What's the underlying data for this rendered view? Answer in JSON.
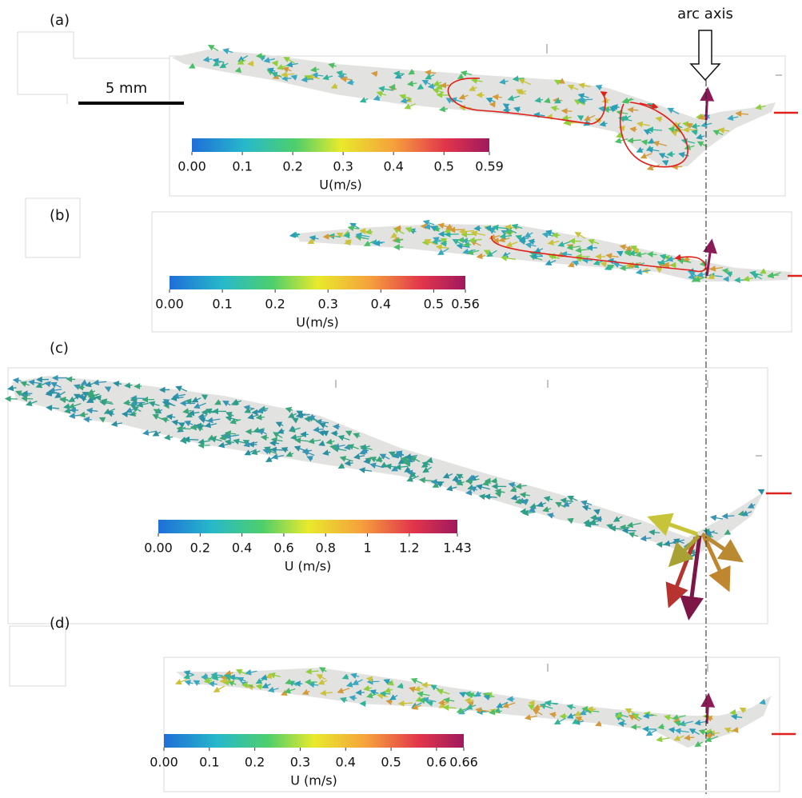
{
  "figure": {
    "arc_axis_label": "arc axis",
    "scale_bar_label": "5 mm",
    "panels": [
      {
        "label": "(a)",
        "colorbar": {
          "ticks": [
            "0.00",
            "0.1",
            "0.2",
            "0.3",
            "0.4",
            "0.5",
            "0.59"
          ],
          "unit": "U(m/s)"
        }
      },
      {
        "label": "(b)",
        "colorbar": {
          "ticks": [
            "0.00",
            "0.1",
            "0.2",
            "0.3",
            "0.4",
            "0.5",
            "0.56"
          ],
          "unit": "U(m/s)"
        }
      },
      {
        "label": "(c)",
        "colorbar": {
          "ticks": [
            "0.00",
            "0.2",
            "0.4",
            "0.6",
            "0.8",
            "1",
            "1.2",
            "1.43"
          ],
          "unit": "U (m/s)"
        }
      },
      {
        "label": "(d)",
        "colorbar": {
          "ticks": [
            "0.00",
            "0.1",
            "0.2",
            "0.3",
            "0.4",
            "0.5",
            "0.6",
            "0.66"
          ],
          "unit": "U (m/s)"
        }
      }
    ]
  }
}
